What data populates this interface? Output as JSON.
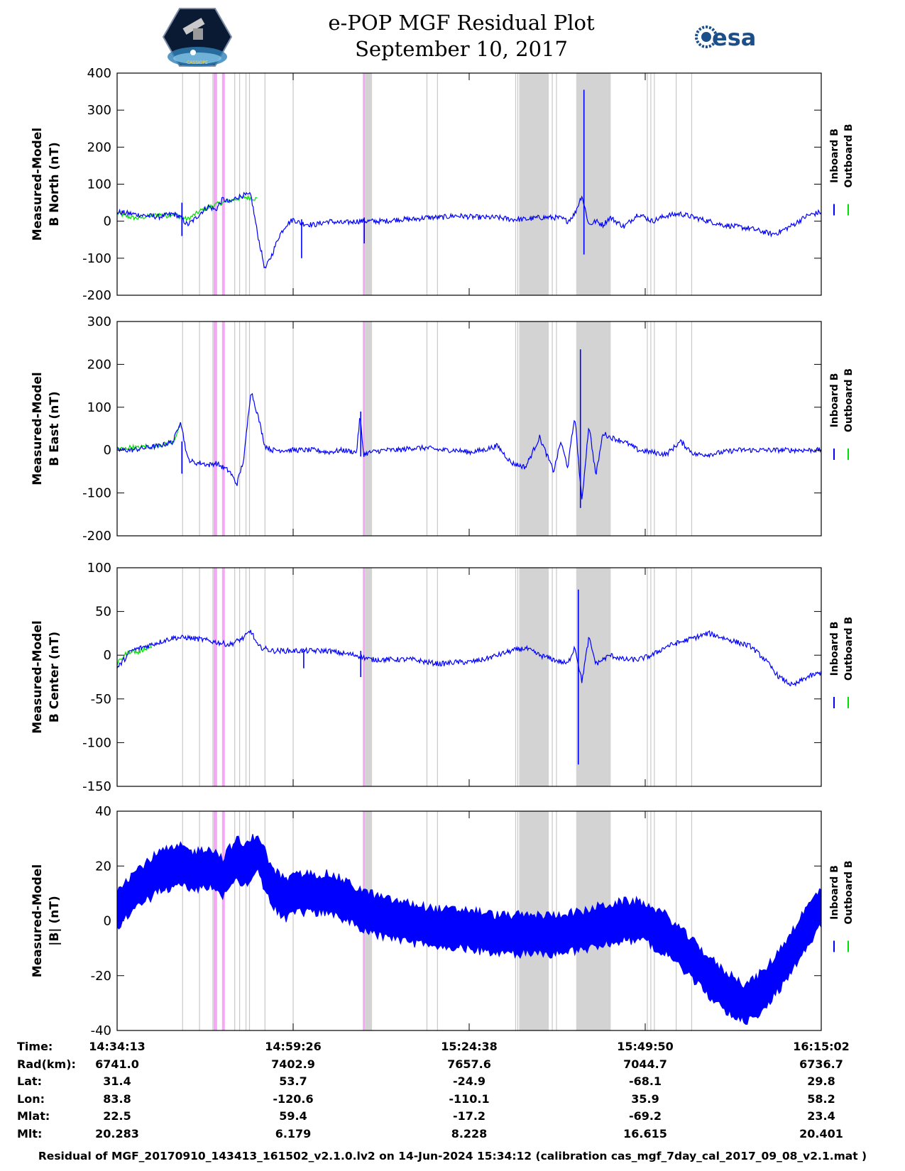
{
  "header": {
    "title_line1": "e-POP MGF Residual Plot",
    "title_line2": "September 10, 2017",
    "left_logo_text": "CASSIOPE",
    "right_logo_text": "esa"
  },
  "legend": {
    "inboard": "Inboard B",
    "outboard": "Outboard B"
  },
  "colors": {
    "inboard": "#0000ff",
    "outboard": "#00dd00",
    "gap_gray": "#d3d3d3",
    "gap_magenta": "#f5a8f5",
    "thin_gray": "#c8c8c8"
  },
  "chart_data": [
    {
      "type": "line",
      "ylabel_line1": "Measured-Model",
      "ylabel_line2": "B North (nT)",
      "ylim": [
        -200,
        400
      ],
      "yticks": [
        -200,
        -100,
        0,
        100,
        200,
        300,
        400
      ],
      "xlim": [
        0,
        100
      ],
      "series": [
        {
          "name": "Inboard B",
          "x": [
            0,
            2,
            4,
            6,
            8,
            9,
            10,
            11,
            12,
            13,
            14,
            15,
            16,
            17,
            18,
            19,
            20,
            21,
            22,
            23,
            24,
            25,
            26,
            28,
            30,
            32,
            34,
            35,
            36,
            37,
            38,
            40,
            42,
            44,
            46,
            48,
            50,
            52,
            54,
            56,
            58,
            60,
            62,
            63,
            64,
            65,
            66,
            67,
            68,
            69,
            70,
            72,
            74,
            76,
            78,
            80,
            82,
            84,
            86,
            88,
            90,
            92,
            93,
            94,
            96,
            98,
            100
          ],
          "values": [
            25,
            20,
            15,
            12,
            20,
            10,
            -10,
            5,
            25,
            40,
            30,
            60,
            50,
            65,
            70,
            70,
            -40,
            -130,
            -90,
            -40,
            -10,
            5,
            -5,
            -10,
            0,
            -5,
            0,
            0,
            0,
            0,
            0,
            5,
            5,
            10,
            10,
            15,
            12,
            10,
            10,
            5,
            5,
            10,
            10,
            8,
            0,
            20,
            70,
            -10,
            0,
            -10,
            10,
            -15,
            20,
            0,
            15,
            20,
            10,
            0,
            -10,
            -15,
            -20,
            -30,
            -35,
            -30,
            -10,
            15,
            25
          ],
          "spikes": [
            {
              "x": 66.3,
              "lo": -90,
              "hi": 355
            },
            {
              "x": 26.2,
              "lo": -100,
              "hi": 5
            },
            {
              "x": 35.1,
              "lo": -60,
              "hi": 10
            },
            {
              "x": 9.2,
              "lo": -40,
              "hi": 50
            }
          ]
        },
        {
          "name": "Outboard B",
          "x": [
            0,
            1,
            2,
            3,
            4,
            5,
            6,
            7,
            8,
            9,
            10,
            12,
            14,
            16,
            18,
            20
          ],
          "values": [
            22,
            15,
            10,
            8,
            12,
            15,
            18,
            14,
            20,
            12,
            5,
            30,
            45,
            55,
            65,
            60
          ]
        }
      ]
    },
    {
      "type": "line",
      "ylabel_line1": "Measured-Model",
      "ylabel_line2": "B East (nT)",
      "ylim": [
        -200,
        300
      ],
      "yticks": [
        -200,
        -100,
        0,
        100,
        200,
        300
      ],
      "xlim": [
        0,
        100
      ],
      "series": [
        {
          "name": "Inboard B",
          "x": [
            0,
            2,
            4,
            6,
            8,
            9,
            10,
            11,
            12,
            13,
            14,
            15,
            16,
            17,
            18,
            19,
            20,
            21,
            22,
            24,
            26,
            28,
            30,
            32,
            34,
            34.5,
            35,
            36,
            38,
            40,
            42,
            44,
            46,
            48,
            50,
            52,
            54,
            56,
            58,
            60,
            62,
            63,
            64,
            65,
            66,
            67,
            68,
            69,
            70,
            72,
            74,
            76,
            78,
            80,
            82,
            84,
            86,
            88,
            90,
            92,
            94,
            96,
            98,
            100
          ],
          "values": [
            0,
            0,
            5,
            10,
            20,
            70,
            -20,
            -30,
            -30,
            -35,
            -30,
            -40,
            -50,
            -80,
            -20,
            140,
            80,
            10,
            0,
            0,
            0,
            0,
            -5,
            0,
            -5,
            80,
            -10,
            -5,
            0,
            0,
            5,
            5,
            0,
            0,
            -5,
            0,
            10,
            -30,
            -40,
            30,
            -50,
            20,
            -40,
            80,
            -120,
            60,
            -60,
            40,
            30,
            20,
            0,
            -5,
            -10,
            20,
            -10,
            -10,
            -5,
            0,
            0,
            0,
            0,
            0,
            0,
            0
          ],
          "spikes": [
            {
              "x": 65.8,
              "lo": -135,
              "hi": 235
            },
            {
              "x": 9.2,
              "lo": -55,
              "hi": 20
            },
            {
              "x": 34.6,
              "lo": -15,
              "hi": 90
            }
          ]
        },
        {
          "name": "Outboard B",
          "x": [
            0,
            1,
            2,
            3,
            4,
            5,
            6,
            7,
            8,
            9
          ],
          "values": [
            5,
            2,
            8,
            5,
            10,
            8,
            12,
            15,
            20,
            60
          ]
        }
      ]
    },
    {
      "type": "line",
      "ylabel_line1": "Measured-Model",
      "ylabel_line2": "B Center (nT)",
      "ylim": [
        -150,
        100
      ],
      "yticks": [
        -150,
        -100,
        -50,
        0,
        50,
        100
      ],
      "xlim": [
        0,
        100
      ],
      "series": [
        {
          "name": "Inboard B",
          "x": [
            0,
            2,
            4,
            6,
            8,
            10,
            12,
            14,
            16,
            18,
            19,
            20,
            22,
            24,
            26,
            28,
            30,
            32,
            34,
            36,
            38,
            40,
            42,
            44,
            46,
            48,
            50,
            52,
            54,
            56,
            58,
            60,
            62,
            64,
            65,
            66,
            67,
            68,
            70,
            72,
            74,
            76,
            78,
            80,
            82,
            84,
            86,
            88,
            90,
            92,
            94,
            96,
            98,
            100
          ],
          "values": [
            -15,
            5,
            10,
            15,
            20,
            20,
            18,
            15,
            12,
            20,
            28,
            10,
            5,
            5,
            5,
            5,
            5,
            2,
            0,
            -5,
            -5,
            -5,
            -5,
            -8,
            -10,
            -8,
            -8,
            -5,
            0,
            5,
            8,
            0,
            -5,
            -10,
            10,
            -30,
            20,
            -10,
            0,
            -5,
            -5,
            0,
            10,
            15,
            20,
            25,
            20,
            15,
            10,
            -5,
            -25,
            -35,
            -25,
            -20
          ],
          "spikes": [
            {
              "x": 65.5,
              "lo": -125,
              "hi": 75
            },
            {
              "x": 26.5,
              "lo": -15,
              "hi": 5
            },
            {
              "x": 34.6,
              "lo": -25,
              "hi": 5
            }
          ]
        },
        {
          "name": "Outboard B",
          "x": [
            0,
            1,
            2,
            3,
            4,
            5
          ],
          "values": [
            -10,
            0,
            5,
            3,
            8,
            10
          ]
        }
      ]
    },
    {
      "type": "line",
      "ylabel_line1": "Measured-Model",
      "ylabel_line2": "|B| (nT)",
      "ylim": [
        -40,
        40
      ],
      "yticks": [
        -40,
        -20,
        0,
        20,
        40
      ],
      "xlim": [
        0,
        100
      ],
      "series": [
        {
          "name": "Inboard B",
          "x": [
            0,
            3,
            6,
            9,
            11,
            13,
            15,
            17,
            18,
            20,
            22,
            24,
            26,
            28,
            30,
            32,
            34,
            36,
            38,
            40,
            42,
            44,
            46,
            48,
            50,
            52,
            54,
            56,
            58,
            60,
            62,
            64,
            66,
            68,
            70,
            72,
            74,
            76,
            78,
            80,
            82,
            84,
            86,
            88,
            89,
            90,
            92,
            94,
            96,
            98,
            100
          ],
          "values": [
            5,
            12,
            18,
            20,
            18,
            20,
            16,
            23,
            20,
            25,
            12,
            8,
            10,
            10,
            10,
            8,
            5,
            3,
            1,
            0,
            -1,
            -2,
            -3,
            -3,
            -3,
            -4,
            -5,
            -5,
            -5,
            -5,
            -5,
            -4,
            -4,
            -2,
            -1,
            0,
            0,
            -2,
            -5,
            -10,
            -15,
            -20,
            -25,
            -28,
            -30,
            -29,
            -25,
            -18,
            -10,
            -2,
            5
          ],
          "band": 7
        },
        {
          "name": "Outboard B",
          "x": [
            0,
            1,
            2,
            3,
            4,
            5,
            6
          ],
          "values": [
            0,
            2,
            4,
            8,
            10,
            12,
            15
          ]
        }
      ]
    }
  ],
  "shading": {
    "magenta_ranges": [
      [
        13.7,
        14.2
      ],
      [
        14.9,
        15.3
      ],
      [
        34.9,
        35.2
      ]
    ],
    "gray_ranges": [
      [
        35.2,
        36.2
      ],
      [
        57.1,
        61.3
      ],
      [
        65.2,
        70.1
      ]
    ],
    "thin_gray_lines": [
      9.3,
      11.7,
      13.6,
      16.7,
      17.4,
      18.3,
      18.8,
      21.0,
      25.0,
      44.0,
      45.5,
      56.6,
      56.9,
      61.8,
      62.4,
      75.3,
      75.8,
      76.3,
      79.4,
      81.6
    ]
  },
  "xticks": [
    0,
    25,
    50,
    75,
    100
  ],
  "info": {
    "rows": [
      {
        "label": "Time:",
        "values": [
          "14:34:13",
          "14:59:26",
          "15:24:38",
          "15:49:50",
          "16:15:02"
        ]
      },
      {
        "label": "Rad(km):",
        "values": [
          "6741.0",
          "7402.9",
          "7657.6",
          "7044.7",
          "6736.7"
        ]
      },
      {
        "label": "Lat:",
        "values": [
          "31.4",
          "53.7",
          "-24.9",
          "-68.1",
          "29.8"
        ]
      },
      {
        "label": "Lon:",
        "values": [
          "83.8",
          "-120.6",
          "-110.1",
          "35.9",
          "58.2"
        ]
      },
      {
        "label": "Mlat:",
        "values": [
          "22.5",
          "59.4",
          "-17.2",
          "-69.2",
          "23.4"
        ]
      },
      {
        "label": "Mlt:",
        "values": [
          "20.283",
          "6.179",
          "8.228",
          "16.615",
          "20.401"
        ]
      }
    ]
  },
  "footer": "Residual of MGF_20170910_143413_161502_v2.1.0.lv2 on 14-Jun-2024 15:34:12 (calibration cas_mgf_7day_cal_2017_09_08_v2.1.mat )"
}
